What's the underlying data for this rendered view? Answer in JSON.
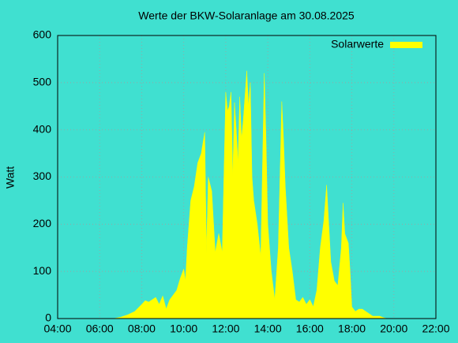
{
  "chart_data": {
    "type": "area",
    "title": "Werte der BKW-Solaranlage am 30.08.2025",
    "ylabel": "Watt",
    "series": [
      {
        "name": "Solarwerte",
        "color": "#ffff00",
        "x": [
          "06:40",
          "07:00",
          "07:20",
          "07:40",
          "08:00",
          "08:10",
          "08:20",
          "08:30",
          "08:40",
          "08:50",
          "09:00",
          "09:10",
          "09:20",
          "09:30",
          "09:40",
          "09:50",
          "10:00",
          "10:05",
          "10:10",
          "10:20",
          "10:30",
          "10:40",
          "10:50",
          "11:00",
          "11:05",
          "11:10",
          "11:20",
          "11:30",
          "11:40",
          "11:50",
          "12:00",
          "12:05",
          "12:10",
          "12:15",
          "12:20",
          "12:25",
          "12:30",
          "12:35",
          "12:40",
          "12:45",
          "12:50",
          "13:00",
          "13:05",
          "13:10",
          "13:15",
          "13:20",
          "13:30",
          "13:40",
          "13:50",
          "13:55",
          "14:00",
          "14:10",
          "14:20",
          "14:30",
          "14:40",
          "14:45",
          "14:50",
          "15:00",
          "15:10",
          "15:20",
          "15:30",
          "15:40",
          "15:50",
          "16:00",
          "16:10",
          "16:20",
          "16:30",
          "16:40",
          "16:48",
          "17:00",
          "17:10",
          "17:20",
          "17:30",
          "17:35",
          "17:40",
          "17:50",
          "17:55",
          "18:00",
          "18:10",
          "18:20",
          "18:30",
          "18:40",
          "18:50",
          "19:00",
          "19:20",
          "19:30",
          "19:40"
        ],
        "values": [
          0,
          3,
          8,
          15,
          30,
          38,
          35,
          40,
          45,
          30,
          48,
          20,
          40,
          50,
          60,
          85,
          105,
          80,
          150,
          250,
          280,
          330,
          350,
          395,
          140,
          300,
          270,
          140,
          180,
          140,
          480,
          440,
          450,
          480,
          300,
          458,
          400,
          330,
          470,
          380,
          420,
          525,
          450,
          500,
          300,
          250,
          200,
          130,
          520,
          380,
          200,
          100,
          40,
          150,
          460,
          380,
          280,
          150,
          100,
          40,
          35,
          45,
          30,
          40,
          25,
          60,
          150,
          207,
          283,
          120,
          80,
          70,
          150,
          245,
          180,
          160,
          100,
          25,
          15,
          20,
          20,
          15,
          10,
          5,
          5,
          2,
          0
        ]
      }
    ],
    "xlim": [
      "04:00",
      "22:00"
    ],
    "xticks": [
      "04:00",
      "06:00",
      "08:00",
      "10:00",
      "12:00",
      "14:00",
      "16:00",
      "18:00",
      "20:00",
      "22:00"
    ],
    "ylim": [
      0,
      600
    ],
    "yticks": [
      0,
      100,
      200,
      300,
      400,
      500,
      600
    ],
    "grid": true,
    "legend": "top-right"
  }
}
